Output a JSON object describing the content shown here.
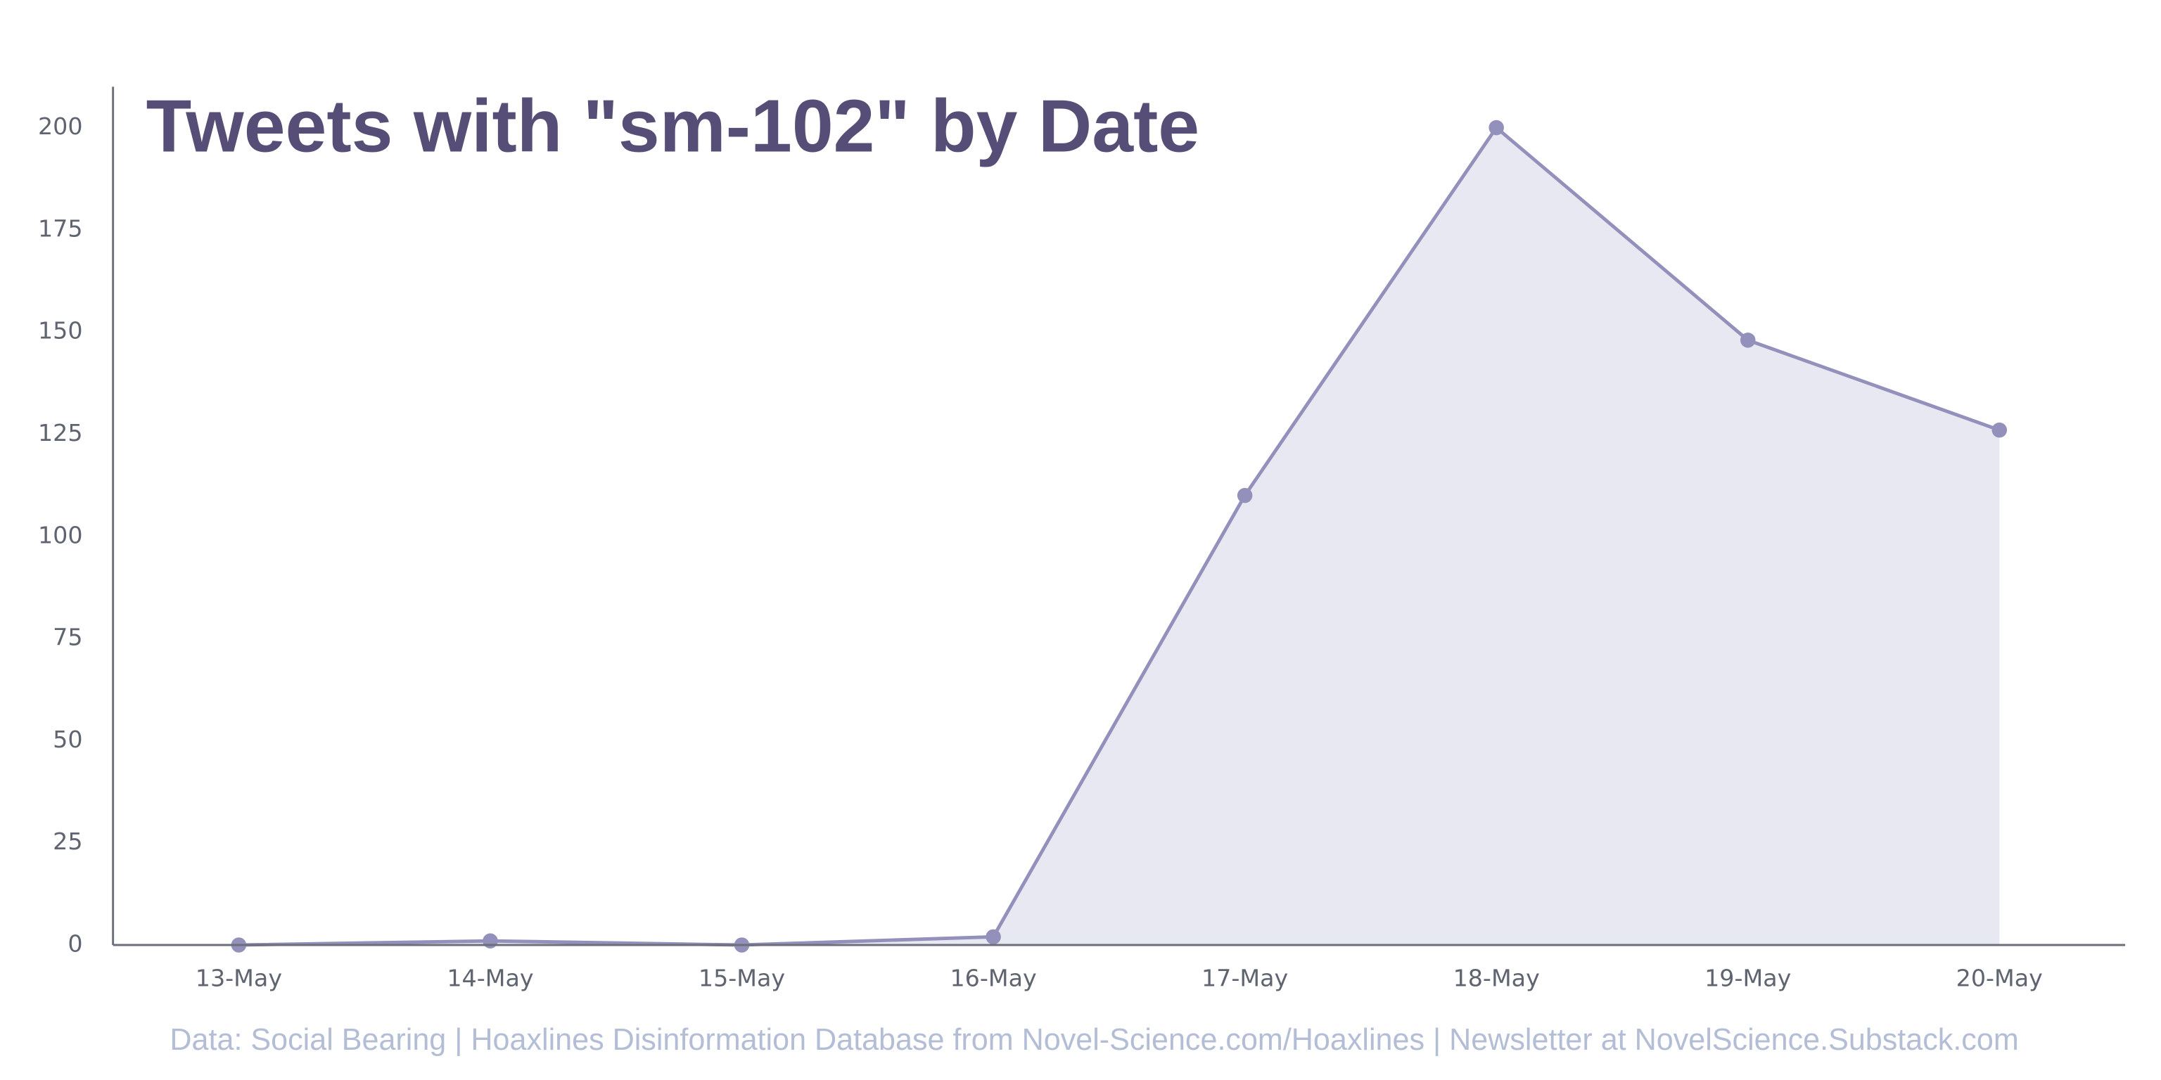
{
  "chart_data": {
    "type": "line",
    "title": "Tweets with \"sm-102\" by Date",
    "source": "Data: Social Bearing | Hoaxlines Disinformation Database from Novel-Science.com/Hoaxlines | Newsletter at NovelScience.Substack.com",
    "categories": [
      "13-May",
      "14-May",
      "15-May",
      "16-May",
      "17-May",
      "18-May",
      "19-May",
      "20-May"
    ],
    "values": [
      0,
      1,
      0,
      2,
      110,
      200,
      148,
      126
    ],
    "color": "#9391bb",
    "fill": "#e8e8f2",
    "ylim": [
      0,
      210
    ],
    "yticks": [
      0,
      25,
      50,
      75,
      100,
      125,
      150,
      175,
      200
    ],
    "grid": false
  }
}
